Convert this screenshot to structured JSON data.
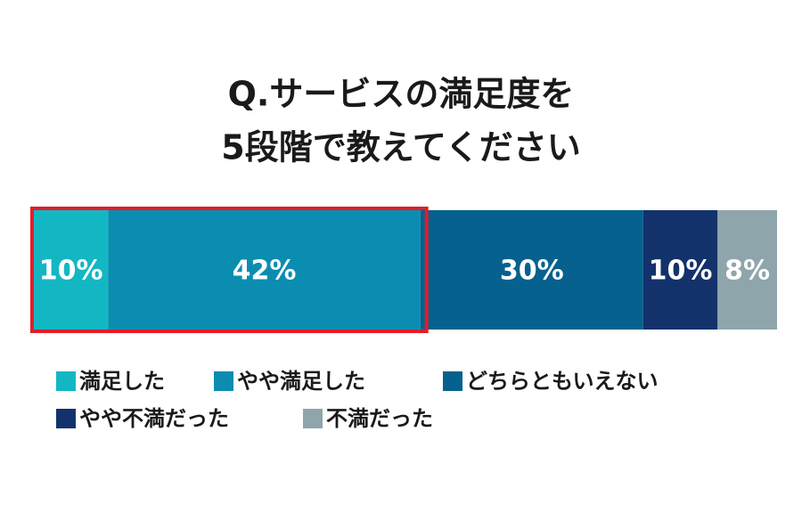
{
  "chart_data": {
    "type": "bar",
    "orientation": "horizontal",
    "stacked": true,
    "title": [
      "Q.サービスの満足度を",
      "5段階で教えてください"
    ],
    "xlim": [
      0,
      100
    ],
    "series": [
      {
        "name": "満足した",
        "color": "#13b7c3",
        "values": [
          10
        ],
        "value_labels": [
          "10%"
        ]
      },
      {
        "name": "やや満足した",
        "color": "#0a8db0",
        "values": [
          42
        ],
        "value_labels": [
          "42%"
        ]
      },
      {
        "name": "どちらともいえない",
        "color": "#06618f",
        "values": [
          30
        ],
        "value_labels": [
          "30%"
        ]
      },
      {
        "name": "やや不満だった",
        "color": "#13326b",
        "values": [
          10
        ],
        "value_labels": [
          "10%"
        ]
      },
      {
        "name": "不満だった",
        "color": "#8fa5ac",
        "values": [
          8
        ],
        "value_labels": [
          "8%"
        ]
      }
    ]
  }
}
